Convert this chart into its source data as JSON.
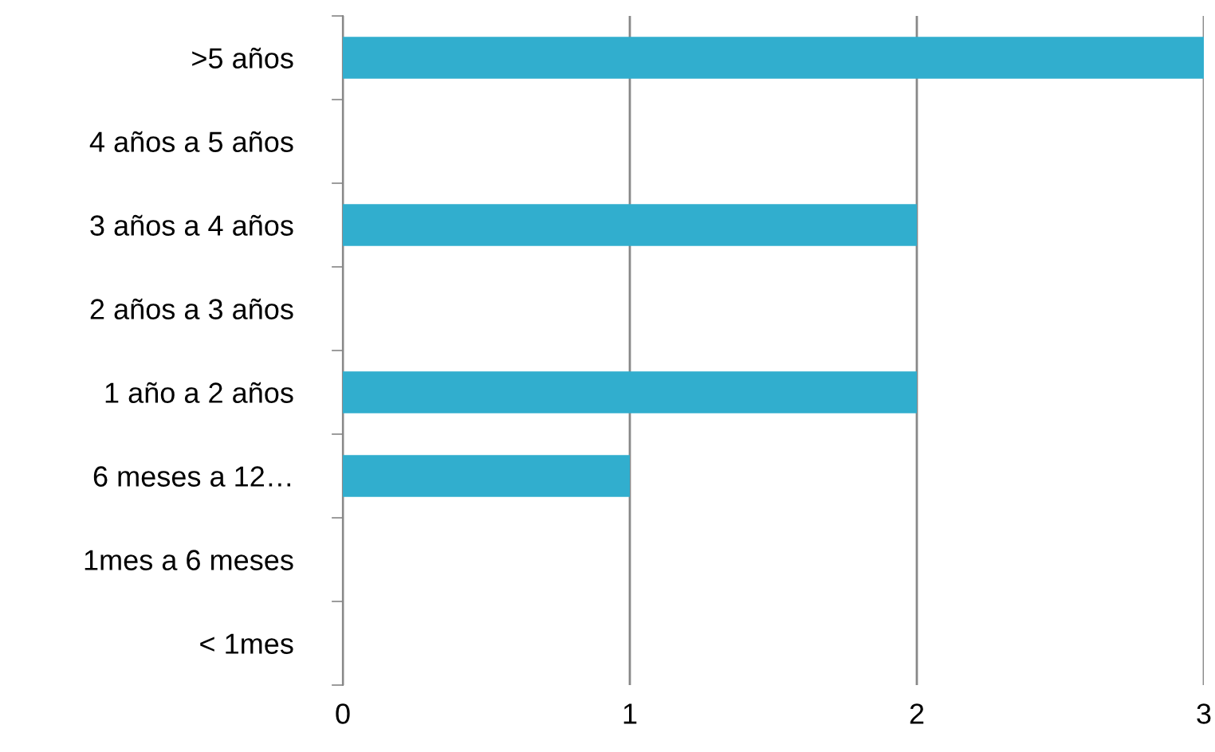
{
  "chart_data": {
    "type": "bar",
    "orientation": "horizontal",
    "categories": [
      ">5 años",
      "4 años a 5 años",
      "3 años a 4 años",
      "2 años a 3 años",
      "1 año a 2 años",
      "6 meses a 12…",
      "1mes a 6 meses",
      "< 1mes"
    ],
    "values": [
      3,
      0,
      2,
      0,
      2,
      1,
      0,
      0
    ],
    "color": "#31aece",
    "xlim": [
      0,
      3
    ],
    "xticks": [
      0,
      1,
      2,
      3
    ],
    "grid": "x",
    "legend": false
  }
}
